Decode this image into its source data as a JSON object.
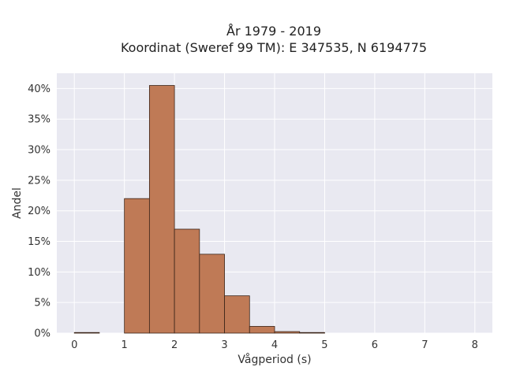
{
  "chart_data": {
    "type": "bar",
    "title_lines": [
      "År 1979 - 2019",
      "Koordinat (Sweref 99 TM): E 347535, N 6194775"
    ],
    "xlabel": "Vågperiod (s)",
    "ylabel": "Andel",
    "bin_width": 0.5,
    "xlim": [
      -0.35,
      8.35
    ],
    "ylim": [
      0,
      42.5
    ],
    "x_ticks": [
      0,
      1,
      2,
      3,
      4,
      5,
      6,
      7,
      8
    ],
    "x_tick_labels": [
      "0",
      "1",
      "2",
      "3",
      "4",
      "5",
      "6",
      "7",
      "8"
    ],
    "y_ticks": [
      0,
      5,
      10,
      15,
      20,
      25,
      30,
      35,
      40
    ],
    "y_tick_labels": [
      "0%",
      "5%",
      "10%",
      "15%",
      "20%",
      "25%",
      "30%",
      "35%",
      "40%"
    ],
    "bins": [
      {
        "x0": 0.0,
        "value": 0.1
      },
      {
        "x0": 0.5,
        "value": 0.0
      },
      {
        "x0": 1.0,
        "value": 22.0
      },
      {
        "x0": 1.5,
        "value": 40.5
      },
      {
        "x0": 2.0,
        "value": 17.0
      },
      {
        "x0": 2.5,
        "value": 12.9
      },
      {
        "x0": 3.0,
        "value": 6.1
      },
      {
        "x0": 3.5,
        "value": 1.1
      },
      {
        "x0": 4.0,
        "value": 0.25
      },
      {
        "x0": 4.5,
        "value": 0.1
      }
    ],
    "grid": true,
    "colors": {
      "bar_fill": "#bf7a56",
      "bar_stroke": "#3a2418",
      "plot_bg": "#e9e9f1",
      "grid": "#ffffff"
    }
  }
}
